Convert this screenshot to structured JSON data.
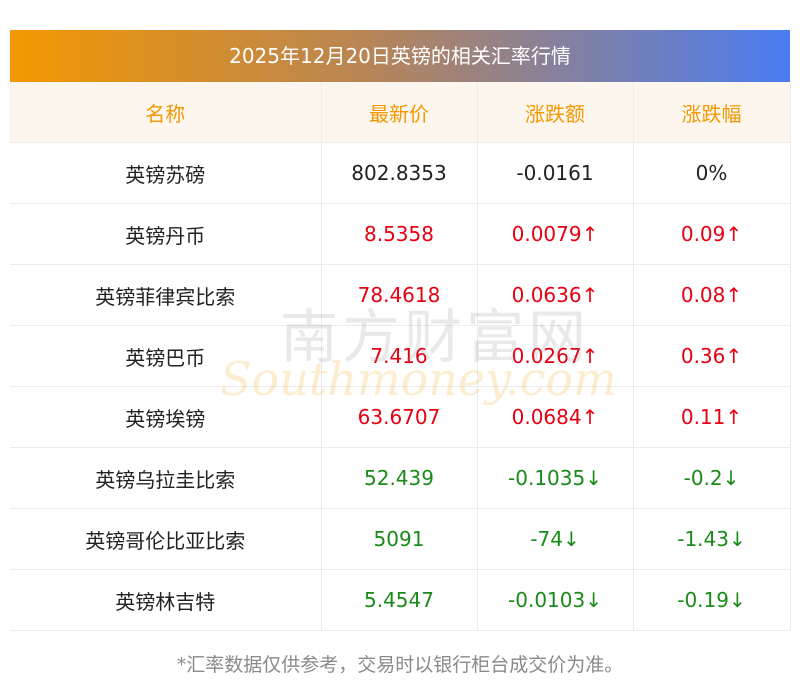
{
  "title": "2025年12月20日英镑的相关汇率行情",
  "headers": [
    "名称",
    "最新价",
    "涨跌额",
    "涨跌幅"
  ],
  "rows": [
    {
      "name": "英镑苏磅",
      "price": "802.8353",
      "change": "-0.0161",
      "pct": "0%",
      "trend": "flat"
    },
    {
      "name": "英镑丹币",
      "price": "8.5358",
      "change": "0.0079↑",
      "pct": "0.09↑",
      "trend": "up"
    },
    {
      "name": "英镑菲律宾比索",
      "price": "78.4618",
      "change": "0.0636↑",
      "pct": "0.08↑",
      "trend": "up"
    },
    {
      "name": "英镑巴币",
      "price": "7.416",
      "change": "0.0267↑",
      "pct": "0.36↑",
      "trend": "up"
    },
    {
      "name": "英镑埃镑",
      "price": "63.6707",
      "change": "0.0684↑",
      "pct": "0.11↑",
      "trend": "up"
    },
    {
      "name": "英镑乌拉圭比索",
      "price": "52.439",
      "change": "-0.1035↓",
      "pct": "-0.2↓",
      "trend": "down"
    },
    {
      "name": "英镑哥伦比亚比索",
      "price": "5091",
      "change": "-74↓",
      "pct": "-1.43↓",
      "trend": "down"
    },
    {
      "name": "英镑林吉特",
      "price": "5.4547",
      "change": "-0.0103↓",
      "pct": "-0.19↓",
      "trend": "down"
    }
  ],
  "footnote": "*汇率数据仅供参考，交易时以银行柜台成交价为准。",
  "watermark": {
    "cn": "南方财富网",
    "en": "Southmoney.com"
  },
  "colors": {
    "up": "#e60012",
    "down": "#1a8a1a",
    "header_text": "#f39800"
  }
}
